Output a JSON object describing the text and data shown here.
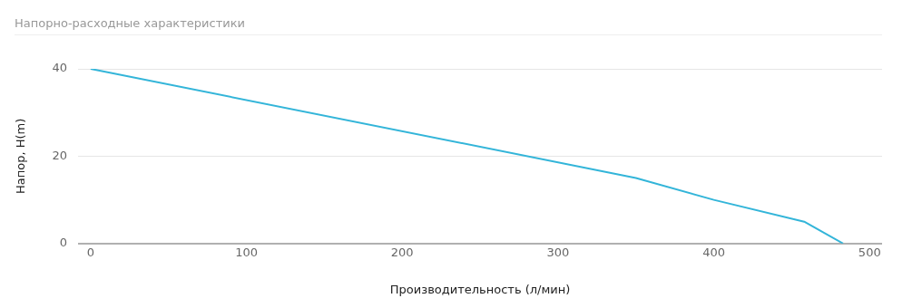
{
  "chart_data": {
    "type": "line",
    "title": "Напорно-расходные характеристики",
    "xlabel": "Производительность (л/мин)",
    "ylabel": "Напор, H(m)",
    "x": [
      0,
      350,
      400,
      458,
      483
    ],
    "series": [
      {
        "color": "#33b5d9",
        "values": [
          40,
          15,
          10,
          5,
          0
        ]
      }
    ],
    "xlim": [
      -8,
      508
    ],
    "xticks": [
      0,
      100,
      200,
      300,
      400,
      500
    ],
    "ylim": [
      0,
      40
    ],
    "yticks": [
      0,
      20,
      40
    ],
    "grid": "y",
    "legend": false,
    "marker": "none",
    "line_style": "solid"
  }
}
